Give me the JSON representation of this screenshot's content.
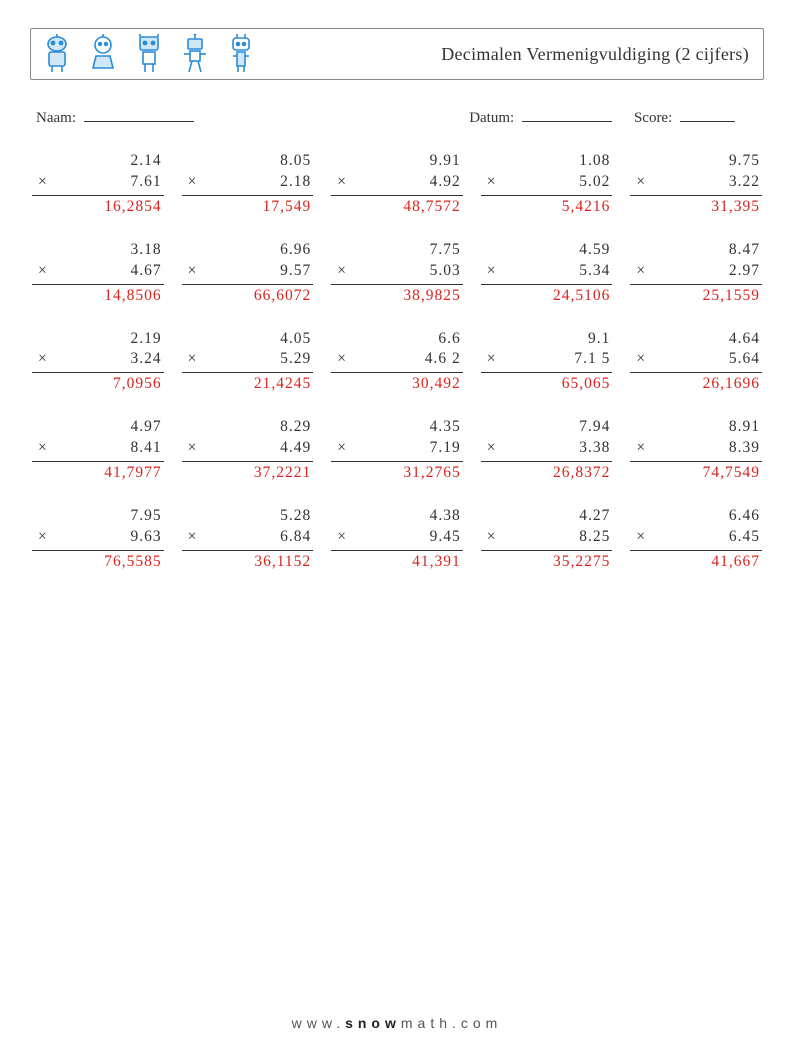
{
  "header": {
    "title": "Decimalen Vermenigvuldiging (2 cijfers)",
    "robot_color": "#2b8cd6",
    "robot_outline": "#1a6bb0"
  },
  "meta": {
    "name_label": "Naam:",
    "date_label": "Datum:",
    "score_label": "Score:"
  },
  "style": {
    "answer_color": "#d8241f",
    "text_color": "#333333",
    "font_size_problem": 15.5,
    "mult_sign": "×"
  },
  "problems": [
    [
      {
        "a": "2.14",
        "b": "7.61",
        "ans": "16,2854"
      },
      {
        "a": "8.05",
        "b": "2.18",
        "ans": "17,549"
      },
      {
        "a": "9.91",
        "b": "4.92",
        "ans": "48,7572"
      },
      {
        "a": "1.08",
        "b": "5.02",
        "ans": "5,4216"
      },
      {
        "a": "9.75",
        "b": "3.22",
        "ans": "31,395"
      }
    ],
    [
      {
        "a": "3.18",
        "b": "4.67",
        "ans": "14,8506"
      },
      {
        "a": "6.96",
        "b": "9.57",
        "ans": "66,6072"
      },
      {
        "a": "7.75",
        "b": "5.03",
        "ans": "38,9825"
      },
      {
        "a": "4.59",
        "b": "5.34",
        "ans": "24,5106"
      },
      {
        "a": "8.47",
        "b": "2.97",
        "ans": "25,1559"
      }
    ],
    [
      {
        "a": "2.19",
        "b": "3.24",
        "ans": "7,0956"
      },
      {
        "a": "4.05",
        "b": "5.29",
        "ans": "21,4245"
      },
      {
        "a": "6.6",
        "b": "4.6 2",
        "ans": "30,492"
      },
      {
        "a": "9.1",
        "b": "7.1 5",
        "ans": "65,065"
      },
      {
        "a": "4.64",
        "b": "5.64",
        "ans": "26,1696"
      }
    ],
    [
      {
        "a": "4.97",
        "b": "8.41",
        "ans": "41,7977"
      },
      {
        "a": "8.29",
        "b": "4.49",
        "ans": "37,2221"
      },
      {
        "a": "4.35",
        "b": "7.19",
        "ans": "31,2765"
      },
      {
        "a": "7.94",
        "b": "3.38",
        "ans": "26,8372"
      },
      {
        "a": "8.91",
        "b": "8.39",
        "ans": "74,7549"
      }
    ],
    [
      {
        "a": "7.95",
        "b": "9.63",
        "ans": "76,5585"
      },
      {
        "a": "5.28",
        "b": "6.84",
        "ans": "36,1152"
      },
      {
        "a": "4.38",
        "b": "9.45",
        "ans": "41,391"
      },
      {
        "a": "4.27",
        "b": "8.25",
        "ans": "35,2275"
      },
      {
        "a": "6.46",
        "b": "6.45",
        "ans": "41,667"
      }
    ]
  ],
  "footer": {
    "prefix": "www.",
    "brand": "snow",
    "suffix": "math.com"
  }
}
